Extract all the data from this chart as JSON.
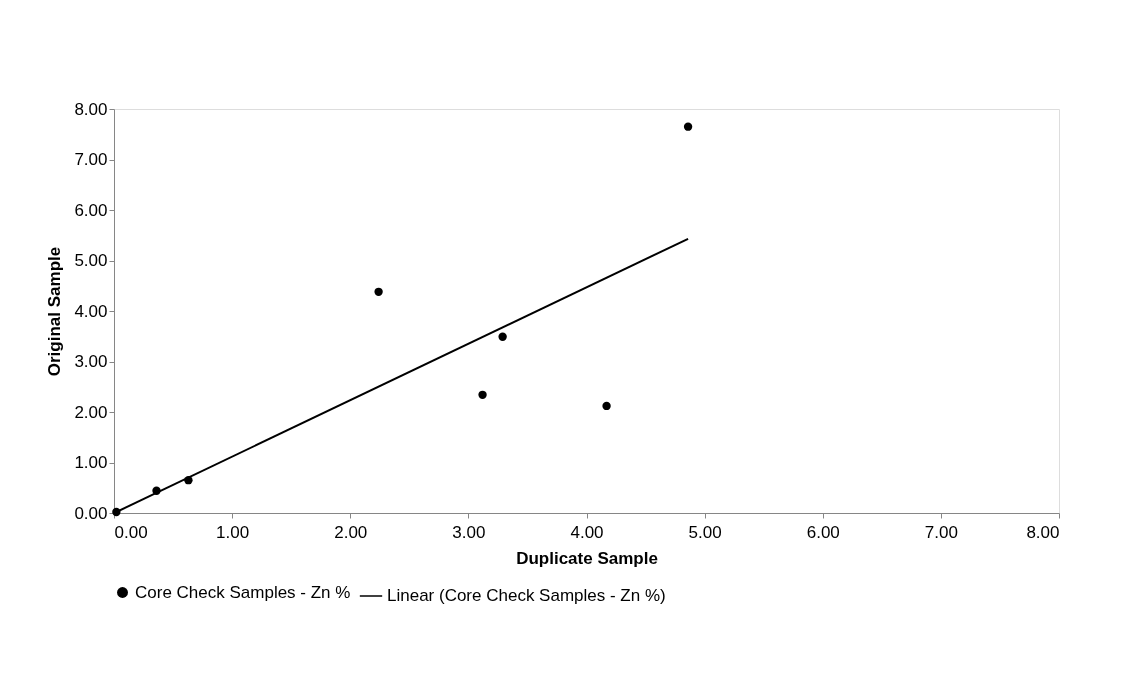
{
  "chart_data": {
    "type": "scatter",
    "xlabel": "Duplicate Sample",
    "ylabel": "Original Sample",
    "xlim": [
      0,
      8
    ],
    "ylim": [
      0,
      8
    ],
    "xticks": [
      {
        "value": 0,
        "label": "0.00"
      },
      {
        "value": 1,
        "label": "1.00"
      },
      {
        "value": 2,
        "label": "2.00"
      },
      {
        "value": 3,
        "label": "3.00"
      },
      {
        "value": 4,
        "label": "4.00"
      },
      {
        "value": 5,
        "label": "5.00"
      },
      {
        "value": 6,
        "label": "6.00"
      },
      {
        "value": 7,
        "label": "7.00"
      },
      {
        "value": 8,
        "label": "8.00"
      }
    ],
    "yticks": [
      {
        "value": 0,
        "label": "0.00"
      },
      {
        "value": 1,
        "label": "1.00"
      },
      {
        "value": 2,
        "label": "2.00"
      },
      {
        "value": 3,
        "label": "3.00"
      },
      {
        "value": 4,
        "label": "4.00"
      },
      {
        "value": 5,
        "label": "5.00"
      },
      {
        "value": 6,
        "label": "6.00"
      },
      {
        "value": 7,
        "label": "7.00"
      },
      {
        "value": 8,
        "label": "8.00"
      }
    ],
    "grid": false,
    "legend": "bottom",
    "series": [
      {
        "name": "Core Check Samples - Zn %",
        "marker": "circle",
        "color": "#000000",
        "x": [
          0.02,
          0.36,
          0.63,
          2.24,
          3.12,
          3.29,
          4.17,
          4.86
        ],
        "values": [
          0.02,
          0.44,
          0.65,
          4.38,
          2.34,
          3.49,
          2.12,
          7.65
        ]
      },
      {
        "name": "Linear (Core Check Samples - Zn %)",
        "type": "line",
        "line_style": "solid",
        "color": "#000000",
        "x": [
          0.02,
          4.86
        ],
        "values": [
          0.02,
          5.43
        ]
      }
    ]
  }
}
